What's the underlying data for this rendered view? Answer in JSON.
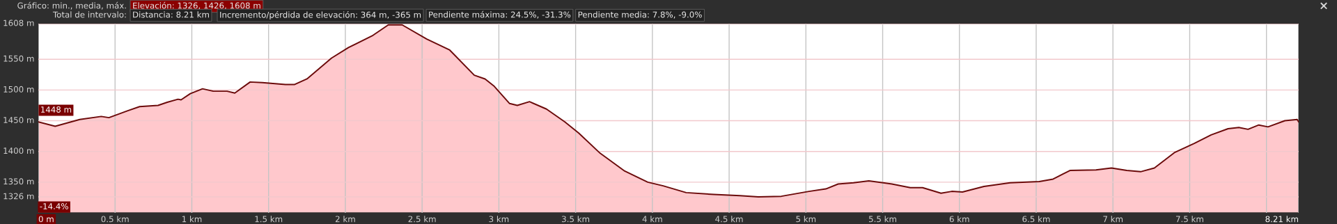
{
  "chart_data": {
    "type": "area",
    "x": [
      0,
      0.11,
      0.27,
      0.41,
      0.46,
      0.58,
      0.66,
      0.78,
      0.84,
      0.91,
      0.93,
      0.99,
      1.07,
      1.14,
      1.23,
      1.28,
      1.38,
      1.46,
      1.61,
      1.67,
      1.75,
      1.91,
      2.02,
      2.18,
      2.28,
      2.37,
      2.53,
      2.68,
      2.84,
      2.91,
      2.97,
      3.07,
      3.12,
      3.2,
      3.31,
      3.43,
      3.52,
      3.66,
      3.82,
      3.97,
      4.07,
      4.22,
      4.4,
      4.57,
      4.69,
      4.84,
      5.02,
      5.13,
      5.21,
      5.31,
      5.41,
      5.56,
      5.68,
      5.76,
      5.88,
      5.95,
      6.02,
      6.16,
      6.33,
      6.52,
      6.61,
      6.72,
      6.89,
      6.99,
      7.09,
      7.18,
      7.27,
      7.4,
      7.53,
      7.64,
      7.75,
      7.82,
      7.88,
      7.95,
      8.01,
      8.12,
      8.2,
      8.21
    ],
    "series": [
      {
        "color": "#6b0a0a",
        "values": [
          1448,
          1441,
          1452,
          1457,
          1455,
          1466,
          1473,
          1475,
          1480,
          1485,
          1484,
          1494,
          1502,
          1498,
          1498,
          1495,
          1513,
          1512,
          1509,
          1509,
          1518,
          1552,
          1569,
          1589,
          1606,
          1606,
          1583,
          1565,
          1524,
          1518,
          1506,
          1478,
          1475,
          1481,
          1469,
          1448,
          1430,
          1397,
          1368,
          1350,
          1344,
          1333,
          1330,
          1328,
          1326,
          1327,
          1335,
          1339,
          1347,
          1349,
          1352,
          1347,
          1341,
          1341,
          1332,
          1335,
          1334,
          1343,
          1349,
          1351,
          1355,
          1369,
          1370,
          1373,
          1369,
          1367,
          1373,
          1398,
          1413,
          1427,
          1437,
          1439,
          1436,
          1443,
          1440,
          1450,
          1452,
          1448
        ]
      }
    ],
    "xlim": [
      0,
      8.21
    ],
    "xticks": [
      {
        "value": 0,
        "label": "0 m"
      },
      {
        "value": 0.5,
        "label": "0.5 km"
      },
      {
        "value": 1,
        "label": "1 km"
      },
      {
        "value": 1.5,
        "label": "1.5 km"
      },
      {
        "value": 2,
        "label": "2 km"
      },
      {
        "value": 2.5,
        "label": "2.5 km"
      },
      {
        "value": 3,
        "label": "3 km"
      },
      {
        "value": 3.5,
        "label": "3.5 km"
      },
      {
        "value": 4,
        "label": "4 km"
      },
      {
        "value": 4.5,
        "label": "4.5 km"
      },
      {
        "value": 5,
        "label": "5 km"
      },
      {
        "value": 5.5,
        "label": "5.5 km"
      },
      {
        "value": 6,
        "label": "6 km"
      },
      {
        "value": 6.5,
        "label": "6.5 km"
      },
      {
        "value": 7,
        "label": "7 km"
      },
      {
        "value": 7.5,
        "label": "7.5 km"
      },
      {
        "value": 8,
        "label": null
      },
      {
        "value": 8.21,
        "label": "8.21 km"
      }
    ],
    "ylim": [
      1300,
      1608
    ],
    "yticks": [
      {
        "value": 1326,
        "label": "1326 m"
      },
      {
        "value": 1350,
        "label": "1350 m"
      },
      {
        "value": 1400,
        "label": "1400 m"
      },
      {
        "value": 1450,
        "label": "1450 m"
      },
      {
        "value": 1500,
        "label": "1500 m"
      },
      {
        "value": 1550,
        "label": "1550 m"
      },
      {
        "value": 1608,
        "label": "1608 m"
      }
    ],
    "grid": true,
    "annotations": [
      "Gráfico: min., media, máx.",
      "Elevación: 1326, 1426, 1608 m",
      "Total de intervalo:",
      "Distancia: 8.21 km",
      "Incremento/pérdida de elevación: 364 m, -365 m",
      "Pendiente máxima: 24.5%, -31.3%",
      "Pendiente media: 7.8%, -9.0%",
      "×",
      {
        "text": "1448 m",
        "x": 0,
        "y": 1448
      },
      "-14.4%"
    ]
  }
}
